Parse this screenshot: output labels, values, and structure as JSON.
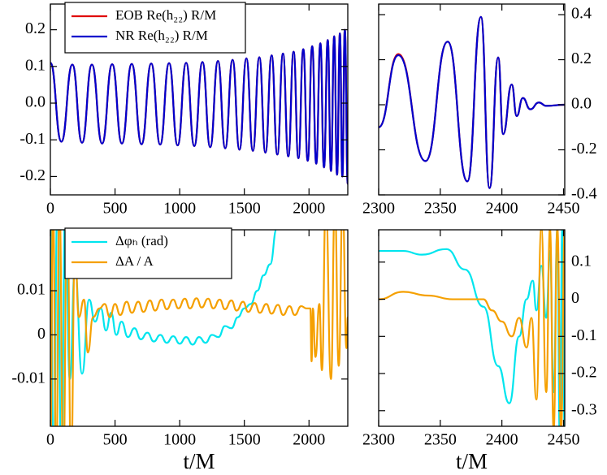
{
  "chart_data": [
    {
      "type": "line",
      "legend": "upper left",
      "xlim": [
        0,
        2300
      ],
      "xticks": [
        0,
        500,
        1000,
        1500,
        2000
      ],
      "ylim": [
        -0.25,
        0.27
      ],
      "yticks": [
        0.2,
        0.1,
        {
          "value": 0,
          "label": "0.0"
        },
        -0.1,
        -0.2
      ],
      "series": [
        {
          "name": "EOB Re(h₂₂) R/M",
          "color": "#e00000",
          "x": [
            0,
            85,
            170,
            245,
            321,
            400,
            478,
            553,
            629,
            705,
            780,
            849,
            918,
            984,
            1050,
            1113,
            1176,
            1236,
            1296,
            1352,
            1409,
            1462,
            1516,
            1566,
            1616,
            1663,
            1711,
            1755,
            1799,
            1840,
            1881,
            1918,
            1956,
            1990,
            2025,
            2056,
            2088,
            2116,
            2145,
            2170,
            2195,
            2217,
            2239,
            2258,
            2277,
            2300
          ],
          "values": [
            0.11,
            -0.105,
            0.105,
            -0.108,
            0.105,
            -0.11,
            0.106,
            -0.11,
            0.107,
            -0.112,
            0.108,
            -0.113,
            0.109,
            -0.115,
            0.11,
            -0.117,
            0.112,
            -0.12,
            0.115,
            -0.123,
            0.118,
            -0.127,
            0.122,
            -0.13,
            0.125,
            -0.135,
            0.13,
            -0.14,
            0.135,
            -0.145,
            0.14,
            -0.15,
            0.147,
            -0.157,
            0.155,
            -0.165,
            0.163,
            -0.175,
            0.172,
            -0.185,
            0.182,
            -0.195,
            0.19,
            -0.2,
            0.2,
            -0.22
          ]
        },
        {
          "name": "NR Re(h₂₂) R/M",
          "color": "#0000cc",
          "x": [
            0,
            85,
            170,
            245,
            321,
            400,
            478,
            553,
            629,
            705,
            780,
            849,
            918,
            984,
            1050,
            1113,
            1176,
            1236,
            1296,
            1352,
            1409,
            1462,
            1516,
            1566,
            1616,
            1663,
            1711,
            1755,
            1799,
            1840,
            1881,
            1918,
            1956,
            1990,
            2025,
            2056,
            2088,
            2116,
            2145,
            2170,
            2195,
            2217,
            2239,
            2258,
            2277,
            2300
          ],
          "values": [
            0.11,
            -0.105,
            0.105,
            -0.108,
            0.105,
            -0.11,
            0.106,
            -0.11,
            0.107,
            -0.112,
            0.108,
            -0.113,
            0.109,
            -0.115,
            0.11,
            -0.117,
            0.112,
            -0.12,
            0.115,
            -0.123,
            0.118,
            -0.127,
            0.122,
            -0.13,
            0.125,
            -0.135,
            0.13,
            -0.14,
            0.135,
            -0.145,
            0.14,
            -0.15,
            0.147,
            -0.157,
            0.155,
            -0.165,
            0.163,
            -0.175,
            0.172,
            -0.185,
            0.182,
            -0.195,
            0.19,
            -0.2,
            0.2,
            -0.22
          ]
        }
      ]
    },
    {
      "type": "line",
      "xlim": [
        2300,
        2451
      ],
      "xticks": [
        2300,
        2350,
        2400,
        2450
      ],
      "ylim": [
        -0.4,
        0.447
      ],
      "yticks": [
        0.4,
        0.2,
        {
          "value": 0,
          "label": "0.0"
        },
        -0.2,
        -0.4
      ],
      "series": [
        {
          "color": "#e00000",
          "x": [
            2300,
            2316,
            2338,
            2356,
            2372,
            2383,
            2390,
            2397,
            2401,
            2408,
            2412,
            2417,
            2423,
            2430,
            2436,
            2451
          ],
          "values": [
            -0.1,
            0.225,
            -0.25,
            0.28,
            -0.34,
            0.39,
            -0.37,
            0.21,
            -0.13,
            0.09,
            -0.05,
            0.03,
            -0.02,
            0.01,
            -0.005,
            0.0
          ]
        },
        {
          "color": "#0000cc",
          "x": [
            2300,
            2316,
            2338,
            2356,
            2372,
            2383,
            2390,
            2397,
            2401,
            2408,
            2412,
            2417,
            2423,
            2430,
            2436,
            2451
          ],
          "values": [
            -0.1,
            0.22,
            -0.25,
            0.28,
            -0.34,
            0.39,
            -0.37,
            0.21,
            -0.13,
            0.09,
            -0.05,
            0.03,
            -0.02,
            0.01,
            -0.005,
            0.0
          ]
        }
      ]
    },
    {
      "type": "line",
      "legend": "upper left",
      "xlabel": "t/M",
      "xlim": [
        0,
        2300
      ],
      "xticks": [
        0,
        500,
        1000,
        1500,
        2000
      ],
      "ylim": [
        -0.0207,
        0.0238
      ],
      "yticks": [
        0.01,
        0,
        -0.01
      ],
      "series": [
        {
          "name": "Δφₕ (rad)",
          "color": "#00e5ee",
          "x": [
            0,
            25,
            55,
            85,
            115,
            150,
            190,
            245,
            300,
            345,
            390,
            430,
            470,
            510,
            550,
            600,
            650,
            700,
            750,
            800,
            850,
            900,
            950,
            1000,
            1050,
            1100,
            1150,
            1200,
            1250,
            1300,
            1350,
            1400,
            1450,
            1500,
            1550,
            1600,
            1650,
            1700,
            1750,
            1780
          ],
          "values": [
            0.03,
            -0.03,
            0.03,
            -0.03,
            0.03,
            -0.01,
            0.015,
            -0.0088,
            0.008,
            0.003,
            0.006,
            0.001,
            0.005,
            0.0,
            0.003,
            -0.0005,
            0.0015,
            -0.001,
            0.0005,
            -0.0015,
            0.0,
            -0.0018,
            -0.0003,
            -0.002,
            -0.0005,
            -0.0022,
            -0.0005,
            -0.0018,
            0.0,
            -0.0005,
            0.002,
            0.0015,
            0.004,
            0.006,
            0.007,
            0.01,
            0.0135,
            0.016,
            0.024,
            0.03
          ]
        },
        {
          "name": "ΔA / A",
          "color": "#f5a000",
          "x": [
            0,
            20,
            45,
            70,
            100,
            130,
            160,
            190,
            220,
            260,
            290,
            330,
            380,
            420,
            460,
            500,
            540,
            590,
            630,
            680,
            720,
            770,
            810,
            860,
            900,
            950,
            990,
            1040,
            1080,
            1130,
            1170,
            1220,
            1260,
            1310,
            1350,
            1400,
            1440,
            1490,
            1530,
            1580,
            1620,
            1670,
            1710,
            1760,
            1800,
            1850,
            1890,
            1940,
            1980,
            2010,
            2020,
            2030,
            2050,
            2080,
            2100,
            2130,
            2170,
            2200,
            2230,
            2260,
            2290,
            2300
          ],
          "values": [
            -0.03,
            0.03,
            -0.03,
            0.03,
            -0.03,
            0.03,
            -0.03,
            0.02,
            0.004,
            0.008,
            -0.004,
            0.004,
            0.006,
            0.007,
            0.004,
            0.007,
            0.0045,
            0.0075,
            0.005,
            0.0075,
            0.0052,
            0.0078,
            0.0055,
            0.008,
            0.0058,
            0.008,
            0.006,
            0.0082,
            0.006,
            0.0083,
            0.0062,
            0.0082,
            0.006,
            0.008,
            0.0058,
            0.0078,
            0.0055,
            0.0075,
            0.0052,
            0.0072,
            0.005,
            0.007,
            0.0048,
            0.0068,
            0.0045,
            0.0065,
            0.0045,
            0.0065,
            0.006,
            0.006,
            -0.006,
            0.006,
            -0.005,
            0.007,
            -0.008,
            0.03,
            -0.01,
            0.03,
            -0.007,
            0.03,
            -0.003,
            0.004
          ]
        }
      ]
    },
    {
      "type": "line",
      "xlabel": "t/M",
      "xlim": [
        2300,
        2451
      ],
      "xticks": [
        2300,
        2350,
        2400,
        2450
      ],
      "ylim": [
        -0.342,
        0.187
      ],
      "yticks": [
        0.1,
        0,
        -0.1,
        -0.2,
        -0.3
      ],
      "series": [
        {
          "color": "#00e5ee",
          "x": [
            2300,
            2320,
            2335,
            2355,
            2370,
            2385,
            2397,
            2406,
            2414,
            2420,
            2425,
            2428,
            2432,
            2436,
            2439,
            2442,
            2445,
            2447,
            2449,
            2451
          ],
          "values": [
            0.13,
            0.13,
            0.12,
            0.135,
            0.08,
            -0.02,
            -0.18,
            -0.28,
            -0.1,
            0.0,
            0.05,
            -0.03,
            0.09,
            -0.05,
            0.13,
            -0.25,
            0.19,
            -0.38,
            0.19,
            -0.38
          ]
        },
        {
          "color": "#f5a000",
          "x": [
            2300,
            2320,
            2340,
            2360,
            2375,
            2385,
            2392,
            2400,
            2408,
            2414,
            2420,
            2424,
            2428,
            2432,
            2436,
            2439,
            2442,
            2445,
            2448,
            2451
          ],
          "values": [
            0.0,
            0.02,
            0.01,
            0.0,
            0.0,
            0.0,
            -0.03,
            -0.06,
            -0.1,
            -0.05,
            -0.13,
            -0.05,
            -0.27,
            0.19,
            -0.25,
            0.19,
            -0.35,
            0.19,
            -0.35,
            0.19
          ]
        }
      ]
    }
  ]
}
